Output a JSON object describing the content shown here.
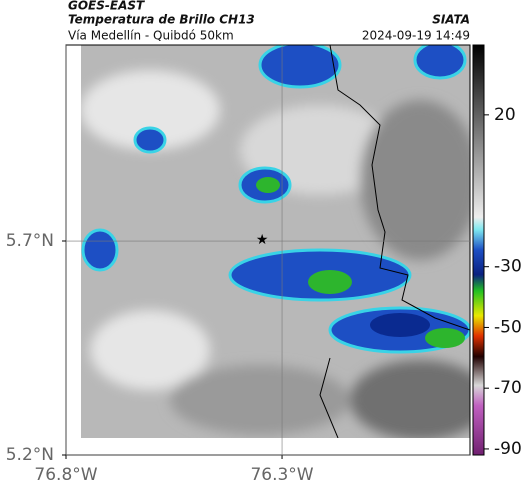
{
  "header": {
    "source": "GOES-EAST",
    "product": "Temperatura de Brillo CH13",
    "region": "Vía Medellín - Quibdó 50km",
    "agency": "SIATA",
    "timestamp": "2024-09-19 14:49"
  },
  "map": {
    "xlim": [
      -76.8,
      -75.865
    ],
    "ylim": [
      5.2,
      6.158
    ],
    "xticks": [
      {
        "value": -76.8,
        "label": "76.8°W"
      },
      {
        "value": -76.3,
        "label": "76.3°W"
      }
    ],
    "yticks": [
      {
        "value": 5.7,
        "label": "5.7°N"
      },
      {
        "value": 5.2,
        "label": "5.2°N"
      }
    ],
    "grid": true,
    "marker": {
      "lon": -76.346,
      "lat": 5.702
    },
    "colorbar": {
      "clim": [
        -92,
        43
      ],
      "ticks": [
        20,
        -30,
        -50,
        -70,
        -90
      ]
    }
  }
}
